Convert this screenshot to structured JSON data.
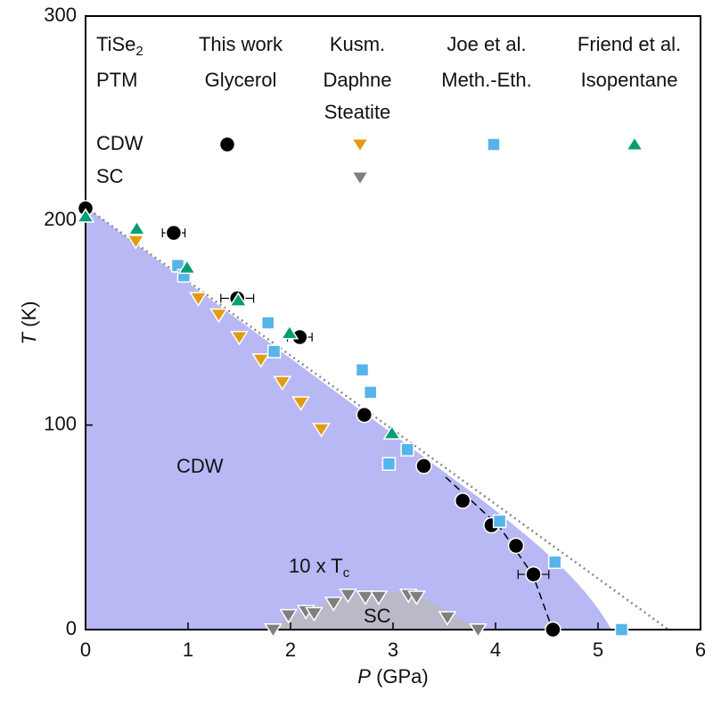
{
  "chart_data": {
    "type": "scatter",
    "x_label": {
      "symbol": "P",
      "unit": "(GPa)"
    },
    "y_label": {
      "symbol": "T",
      "unit": "(K)"
    },
    "xlim": [
      0,
      6
    ],
    "xticks": [
      0,
      1,
      2,
      3,
      4,
      5,
      6
    ],
    "ylim": [
      0,
      300
    ],
    "yticks": [
      0,
      100,
      200,
      300
    ],
    "annotations": {
      "cdw": "CDW",
      "sc": "SC",
      "tc": {
        "text": "10 x T",
        "sub": "c"
      }
    },
    "legend": {
      "title": {
        "text": "TiSe",
        "sub": "2"
      },
      "subtitle": "PTM",
      "rows": [
        "CDW",
        "SC"
      ],
      "groups": [
        {
          "name": "This work",
          "media": [
            "Glycerol"
          ],
          "series": [
            {
              "marker": "circle",
              "color": "#000000",
              "x": [
                0,
                0.86,
                1.48,
                2.09,
                2.72,
                3.3,
                3.68,
                3.96,
                4.2,
                4.37,
                4.56
              ],
              "values": [
                206,
                194,
                162,
                143,
                105,
                80,
                63,
                51,
                41,
                27,
                0
              ],
              "xerr": [
                null,
                0.11,
                0.16,
                0.12,
                null,
                null,
                null,
                null,
                null,
                0.15,
                null
              ]
            },
            null
          ]
        },
        {
          "name": "Kusm.",
          "media": [
            "Daphne",
            "Steatite"
          ],
          "series": [
            {
              "marker": "triangle-down",
              "color": "#e39c12",
              "x": [
                0.49,
                1.1,
                1.3,
                1.5,
                1.71,
                1.92,
                2.1,
                2.3
              ],
              "values": [
                190,
                162,
                154,
                143,
                132,
                121,
                111,
                98
              ]
            },
            {
              "marker": "triangle-down",
              "color": "#7f7f7f",
              "x": [
                1.83,
                1.98,
                2.15,
                2.23,
                2.42,
                2.56,
                2.73,
                2.86,
                3.15,
                3.23,
                3.53,
                3.83
              ],
              "values": [
                0,
                7,
                9,
                8,
                13,
                17,
                16,
                16,
                17,
                16,
                6,
                0
              ]
            }
          ]
        },
        {
          "name": "Joe et al.",
          "media": [
            "Meth.-Eth."
          ],
          "series": [
            {
              "marker": "square",
              "color": "#56b4e9",
              "x": [
                0.9,
                0.96,
                1.78,
                1.84,
                2.7,
                2.78,
                2.96,
                3.14,
                4.04,
                4.58,
                5.23
              ],
              "values": [
                178,
                173,
                150,
                136,
                127,
                116,
                81,
                88,
                53,
                33,
                0
              ]
            },
            null
          ]
        },
        {
          "name": "Friend et al.",
          "media": [
            "Isopentane"
          ],
          "series": [
            {
              "marker": "triangle-up",
              "color": "#009e73",
              "x": [
                0,
                0.5,
                0.99,
                1.49,
                1.99,
                2.99
              ],
              "values": [
                202,
                196,
                177,
                161,
                145,
                96
              ]
            },
            null
          ]
        }
      ]
    }
  }
}
